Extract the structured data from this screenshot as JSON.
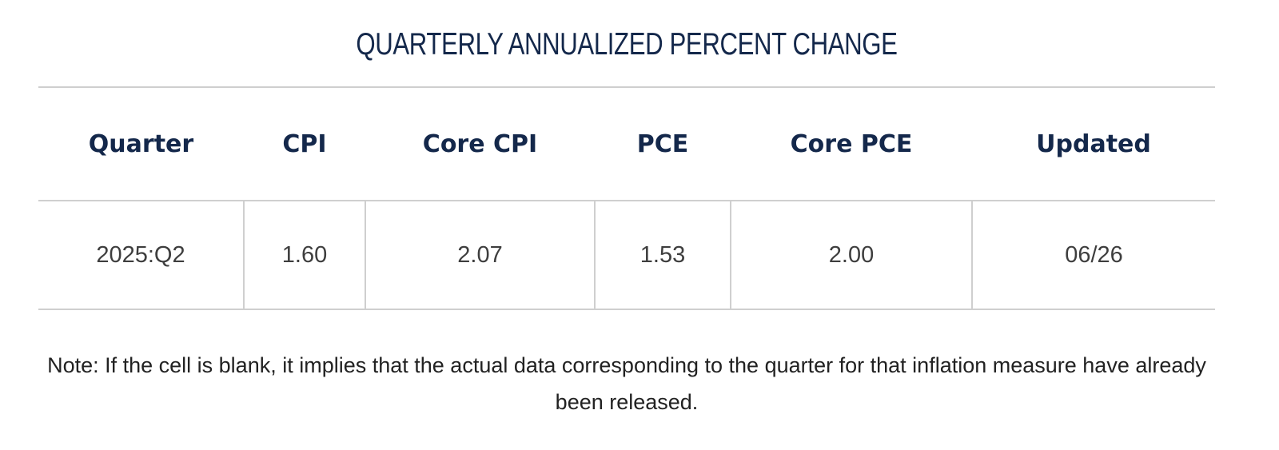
{
  "title": "QUARTERLY ANNUALIZED PERCENT CHANGE",
  "table": {
    "headers": [
      "Quarter",
      "CPI",
      "Core CPI",
      "PCE",
      "Core PCE",
      "Updated"
    ],
    "rows": [
      [
        "2025:Q2",
        "1.60",
        "2.07",
        "1.53",
        "2.00",
        "06/26"
      ]
    ]
  },
  "note": "Note: If the cell is blank, it implies that the actual data corresponding to the quarter for that inflation measure have already been released.",
  "colors": {
    "heading": "#14284b",
    "cell_text": "#3e3e3e",
    "rule": "#cfcfcf"
  }
}
